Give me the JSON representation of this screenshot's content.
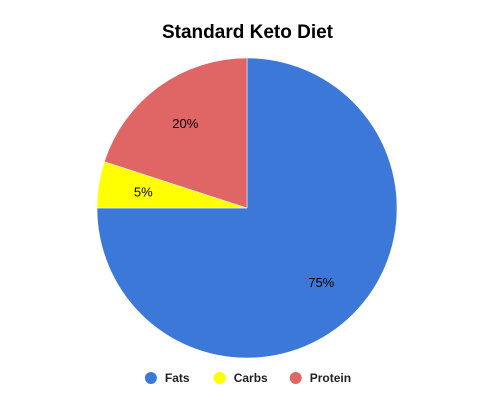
{
  "chart_data": {
    "type": "pie",
    "title": "Standard Keto Diet",
    "slices": [
      {
        "label": "Fats",
        "value": 75,
        "display": "75%",
        "color": "#3c78d8"
      },
      {
        "label": "Carbs",
        "value": 5,
        "display": "5%",
        "color": "#ffff00"
      },
      {
        "label": "Protein",
        "value": 20,
        "display": "20%",
        "color": "#e06666"
      }
    ],
    "start_angle": "top (12 o'clock)",
    "direction": "clockwise",
    "legend": {
      "position": "bottom",
      "items": [
        "Fats",
        "Carbs",
        "Protein"
      ]
    }
  }
}
